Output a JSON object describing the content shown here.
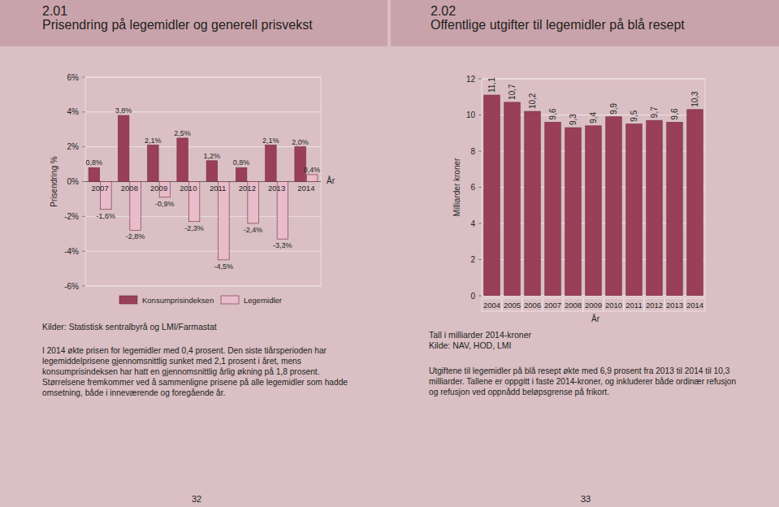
{
  "chart_data": [
    {
      "number": "2.01",
      "type": "bar",
      "title": "Prisendring på legemidler og generell prisvekst",
      "categories": [
        "2007",
        "2008",
        "2009",
        "2010",
        "2011",
        "2012",
        "2013",
        "2014"
      ],
      "series": [
        {
          "name": "Konsumprisindeksen",
          "color": "#9a3f58",
          "values": [
            0.8,
            3.8,
            2.1,
            2.5,
            1.2,
            0.8,
            2.1,
            2.0
          ],
          "value_labels": [
            "0,8%",
            "3,8%",
            "2,1%",
            "2,5%",
            "1,2%",
            "0,8%",
            "2,1%",
            "2,0%"
          ]
        },
        {
          "name": "Legemidler",
          "color": "#e8bccb",
          "values": [
            -1.6,
            -2.8,
            -0.9,
            -2.3,
            -4.5,
            -2.4,
            -3.3,
            0.4
          ],
          "value_labels": [
            "-1,6%",
            "-2,8%",
            "-0,9%",
            "-2,3%",
            "-4,5%",
            "-2,4%",
            "-3,3%",
            "0,4%"
          ]
        }
      ],
      "ylabel": "Prisendring %",
      "xlabel": "År",
      "ylim": [
        -6,
        6
      ],
      "yticks": [
        {
          "value": -6,
          "label": "-6%"
        },
        {
          "value": -4,
          "label": "-4%"
        },
        {
          "value": -2,
          "label": "-2%"
        },
        {
          "value": 0,
          "label": "0%"
        },
        {
          "value": 2,
          "label": "2%"
        },
        {
          "value": 4,
          "label": "4%"
        },
        {
          "value": 6,
          "label": "6%"
        }
      ],
      "grid": true,
      "legend": "bottom",
      "data_labels": true,
      "source": "Kilder: Statistisk sentralbyrå og LMI/Farmastat",
      "note": "I 2014 økte prisen for legemidler med 0,4 prosent. Den siste tiårsperioden har legemiddelprisene gjennomsnittlig sunket med 2,1 prosent i året, mens konsumprisindeksen har hatt en gjennomsnittlig årlig økning på 1,8 prosent. Størrelsene fremkommer ved å sammenligne prisene på alle legemidler som hadde omsetning, både i inneværende og foregående år."
    },
    {
      "number": "2.02",
      "type": "bar",
      "title": "Offentlige utgifter til legemidler på blå resept",
      "categories": [
        "2004",
        "2005",
        "2006",
        "2007",
        "2008",
        "2009",
        "2010",
        "2011",
        "2012",
        "2013",
        "2014"
      ],
      "values": [
        11.1,
        10.7,
        10.2,
        9.6,
        9.3,
        9.4,
        9.9,
        9.5,
        9.7,
        9.6,
        10.3
      ],
      "value_labels": [
        "11,1",
        "10,7",
        "10,2",
        "9,6",
        "9,3",
        "9,4",
        "9,9",
        "9,5",
        "9,7",
        "9,6",
        "10,3"
      ],
      "color": "#9a3f58",
      "ylabel": "Milliarder kroner",
      "xlabel": "År",
      "ylim": [
        0,
        12
      ],
      "yticks": [
        0,
        2,
        4,
        6,
        8,
        10,
        12
      ],
      "grid": true,
      "data_labels": true,
      "unit_note": "Tall i milliarder 2014-kroner",
      "source": "Kilde: NAV, HOD, LMI",
      "note": "Utgiftene til legemidler på blå resept økte med 6,9 prosent fra 2013 til 2014 til 10,3 milliarder. Tallene er oppgitt i faste 2014-kroner, og inkluderer både ordinær refusjon og refusjon ved oppnådd beløpsgrense på frikort."
    }
  ],
  "page_numbers": [
    32,
    33
  ]
}
